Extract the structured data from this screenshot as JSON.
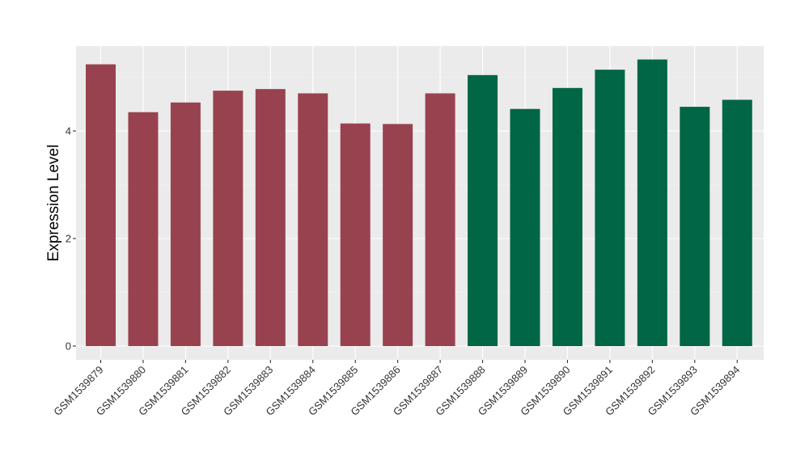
{
  "chart_data": {
    "type": "bar",
    "title": "",
    "xlabel": "",
    "ylabel": "Expression Level",
    "ylim": [
      0,
      5.6
    ],
    "yticks": [
      0,
      2,
      4
    ],
    "ytick_labels": [
      "0",
      "2",
      "4"
    ],
    "grid": true,
    "legend": "none",
    "background": "#ebebeb",
    "categories": [
      "GSM1539879",
      "GSM1539880",
      "GSM1539881",
      "GSM1539882",
      "GSM1539883",
      "GSM1539884",
      "GSM1539885",
      "GSM1539886",
      "GSM1539887",
      "GSM1539888",
      "GSM1539889",
      "GSM1539890",
      "GSM1539891",
      "GSM1539892",
      "GSM1539893",
      "GSM1539894"
    ],
    "values": [
      5.24,
      4.35,
      4.53,
      4.75,
      4.78,
      4.7,
      4.14,
      4.13,
      4.7,
      5.04,
      4.41,
      4.8,
      5.14,
      5.33,
      4.45,
      4.58
    ],
    "group_colors": [
      "#99424f",
      "#99424f",
      "#99424f",
      "#99424f",
      "#99424f",
      "#99424f",
      "#99424f",
      "#99424f",
      "#99424f",
      "#006645",
      "#006645",
      "#006645",
      "#006645",
      "#006645",
      "#006645",
      "#006645"
    ]
  }
}
